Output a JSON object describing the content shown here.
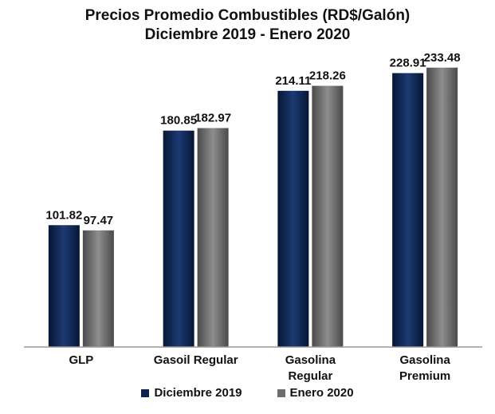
{
  "chart_data": {
    "type": "bar",
    "title": "Precios Promedio Combustibles (RD$/Galón)",
    "subtitle": "Diciembre 2019 - Enero 2020",
    "categories": [
      [
        "GLP"
      ],
      [
        "Gasoil Regular"
      ],
      [
        "Gasolina",
        "Regular"
      ],
      [
        "Gasolina",
        "Premium"
      ]
    ],
    "series": [
      {
        "name": "Diciembre 2019",
        "values": [
          101.82,
          180.85,
          214.11,
          228.91
        ],
        "labels": [
          "101.82",
          "180.85",
          "214.11",
          "228.91"
        ],
        "color": "#0c2350"
      },
      {
        "name": "Enero 2020",
        "values": [
          97.47,
          182.97,
          218.26,
          233.48
        ],
        "labels": [
          "97.47",
          "182.97",
          "218.26",
          "233.48"
        ],
        "color": "#6d6d6d"
      }
    ],
    "ylim": [
      0,
      250
    ],
    "grid": false,
    "legend": "bottom"
  }
}
